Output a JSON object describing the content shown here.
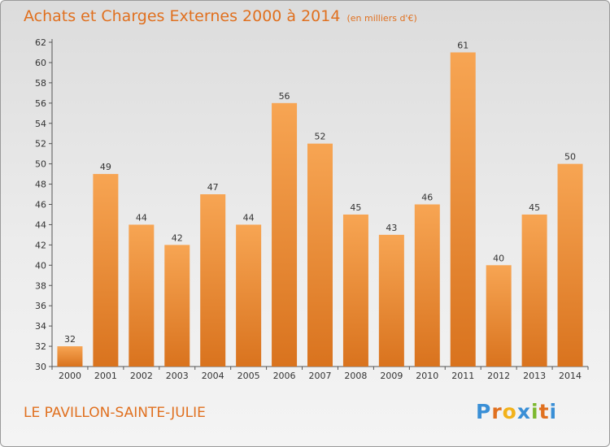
{
  "header": {
    "title": "Achats et Charges Externes 2000 à 2014",
    "unit": "(en milliers d'€)"
  },
  "footer": {
    "city": "LE PAVILLON-SAINTE-JULIE",
    "logo": "Proxiti"
  },
  "colors": {
    "accent": "#e0701f",
    "bar_top": "#f7a553",
    "bar_bottom": "#d9731e"
  },
  "chart_data": {
    "type": "bar",
    "categories": [
      "2000",
      "2001",
      "2002",
      "2003",
      "2004",
      "2005",
      "2006",
      "2007",
      "2008",
      "2009",
      "2010",
      "2011",
      "2012",
      "2013",
      "2014"
    ],
    "values": [
      32,
      49,
      44,
      42,
      47,
      44,
      56,
      52,
      45,
      43,
      46,
      61,
      40,
      45,
      50
    ],
    "title": "Achats et Charges Externes 2000 à 2014",
    "ylabel": "",
    "xlabel": "",
    "ylim": [
      30,
      62
    ],
    "ytick_step": 2,
    "grid": false,
    "legend": "none"
  }
}
